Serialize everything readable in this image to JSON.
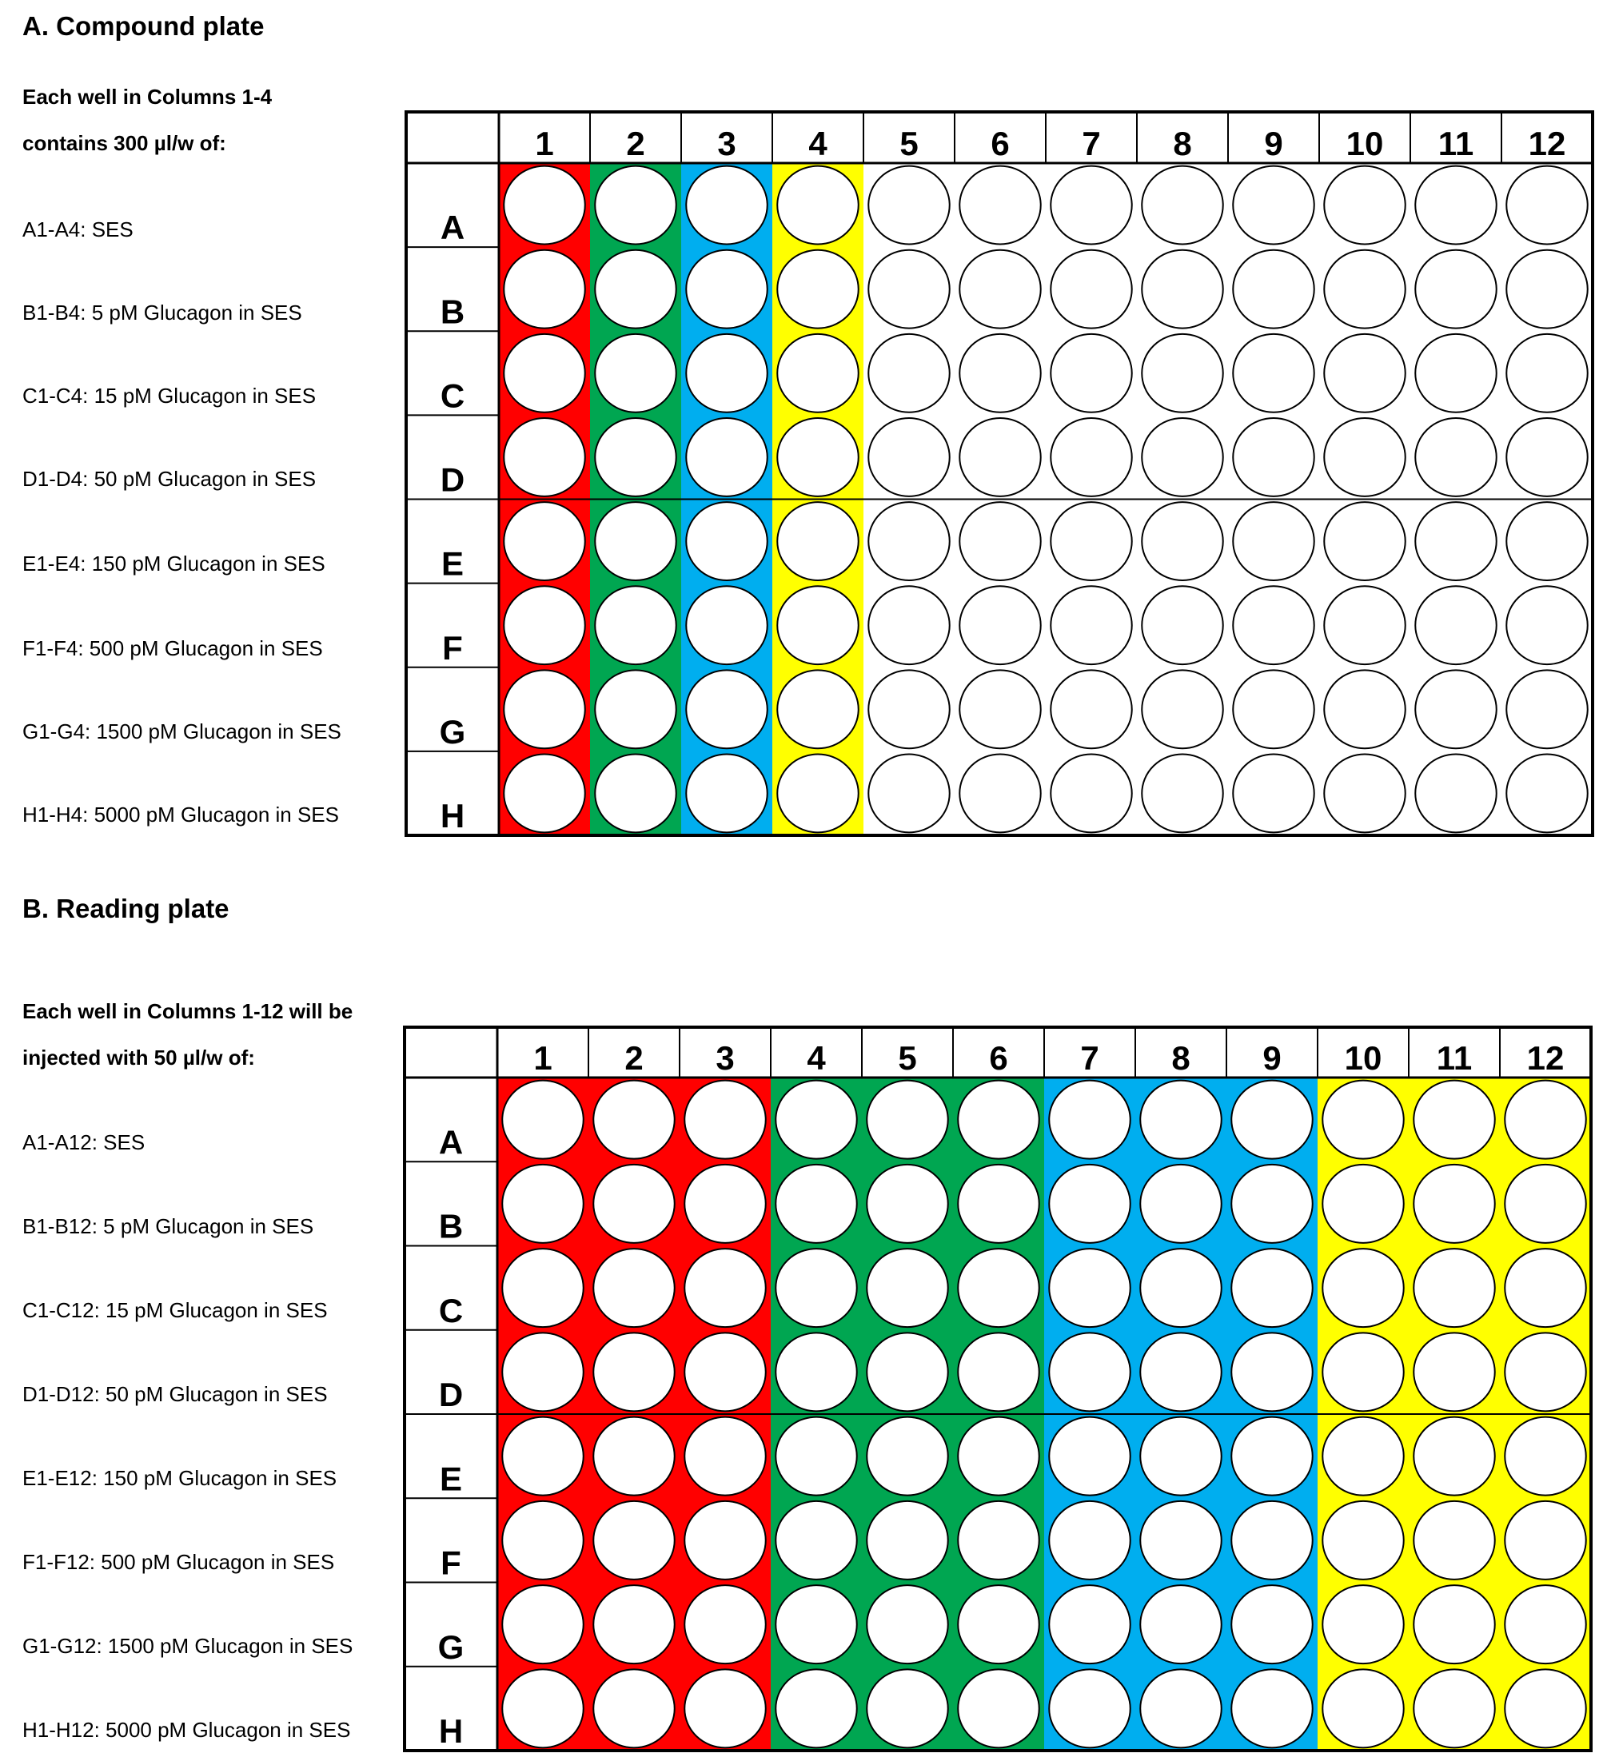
{
  "colors": {
    "red": "#ff0000",
    "green": "#00a651",
    "blue": "#00aeef",
    "yellow": "#ffff00",
    "white": "#ffffff",
    "line": "#000000"
  },
  "column_labels": [
    "1",
    "2",
    "3",
    "4",
    "5",
    "6",
    "7",
    "8",
    "9",
    "10",
    "11",
    "12"
  ],
  "row_labels": [
    "A",
    "B",
    "C",
    "D",
    "E",
    "F",
    "G",
    "H"
  ],
  "panel_a": {
    "title": "A. Compound plate",
    "intro_line1": "Each well in Columns 1-4",
    "intro_line2": "contains 300 µl/w of:",
    "legend": [
      "A1-A4: SES",
      "B1-B4: 5 pM Glucagon in SES",
      "C1-C4: 15 pM Glucagon in SES",
      "D1-D4: 50 pM Glucagon in SES",
      "E1-E4: 150 pM Glucagon in SES",
      "F1-F4: 500 pM Glucagon in SES",
      "G1-G4: 1500 pM Glucagon in SES",
      "H1-H4: 5000 pM Glucagon in SES"
    ],
    "column_colors": [
      "red",
      "green",
      "blue",
      "yellow",
      "white",
      "white",
      "white",
      "white",
      "white",
      "white",
      "white",
      "white"
    ]
  },
  "panel_b": {
    "title": "B. Reading plate",
    "intro_line1": "Each well in Columns 1-12 will be",
    "intro_line2": "injected with 50 µl/w of:",
    "legend": [
      "A1-A12: SES",
      "B1-B12: 5 pM Glucagon in SES",
      "C1-C12: 15 pM Glucagon in SES",
      "D1-D12: 50 pM Glucagon in SES",
      "E1-E12: 150 pM Glucagon in SES",
      "F1-F12: 500 pM Glucagon in SES",
      "G1-G12: 1500 pM Glucagon in SES",
      "H1-H12: 5000 pM Glucagon in SES"
    ],
    "column_colors": [
      "red",
      "red",
      "red",
      "green",
      "green",
      "green",
      "blue",
      "blue",
      "blue",
      "yellow",
      "yellow",
      "yellow"
    ]
  }
}
